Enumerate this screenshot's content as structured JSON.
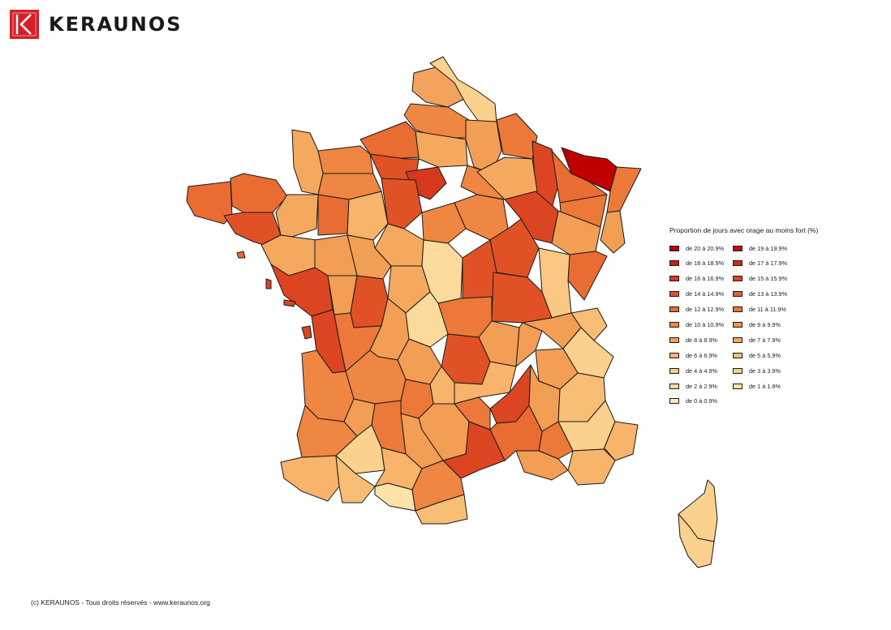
{
  "brand": {
    "name": "KERAUNOS",
    "color": "#d4202a"
  },
  "legend": {
    "title": "Proportion de jours avec orage au moins fort (%)",
    "items": [
      {
        "label": "de 20 à 20.9%",
        "color": "#c00000"
      },
      {
        "label": "de 19 à 19.9%",
        "color": "#c50f0c"
      },
      {
        "label": "de 18 à 18.9%",
        "color": "#cb1d14"
      },
      {
        "label": "de 17 à 17.9%",
        "color": "#d02a1a"
      },
      {
        "label": "de 16 à 16.9%",
        "color": "#d6381f"
      },
      {
        "label": "de 15 à 15.9%",
        "color": "#dc4522"
      },
      {
        "label": "de 14 à 14.9%",
        "color": "#e05226"
      },
      {
        "label": "de 13 à 13.9%",
        "color": "#e55f2c"
      },
      {
        "label": "de 12 à 12.9%",
        "color": "#e96c33"
      },
      {
        "label": "de 11 à 11.9%",
        "color": "#ec793a"
      },
      {
        "label": "de 10 à 10.9%",
        "color": "#ef8642"
      },
      {
        "label": "de 9 à 9.9%",
        "color": "#f1924b"
      },
      {
        "label": "de 8 à 8.9%",
        "color": "#f39e55"
      },
      {
        "label": "de 7 à 7.9%",
        "color": "#f5a95f"
      },
      {
        "label": "de 6 à 6.9%",
        "color": "#f7b46a"
      },
      {
        "label": "de 5 à 5.9%",
        "color": "#f8be75"
      },
      {
        "label": "de 4 à 4.9%",
        "color": "#fac882"
      },
      {
        "label": "de 3 à 3.9%",
        "color": "#fbd18e"
      },
      {
        "label": "de 2 à 2.9%",
        "color": "#fcda9c"
      },
      {
        "label": "de 1 à 1.9%",
        "color": "#fde2aa"
      },
      {
        "label": "de 0 à 0.9%",
        "color": "#fee9b8"
      }
    ]
  },
  "footer": {
    "text": "(c) KERAUNOS - Tous droits réservés - www.keraunos.org"
  }
}
